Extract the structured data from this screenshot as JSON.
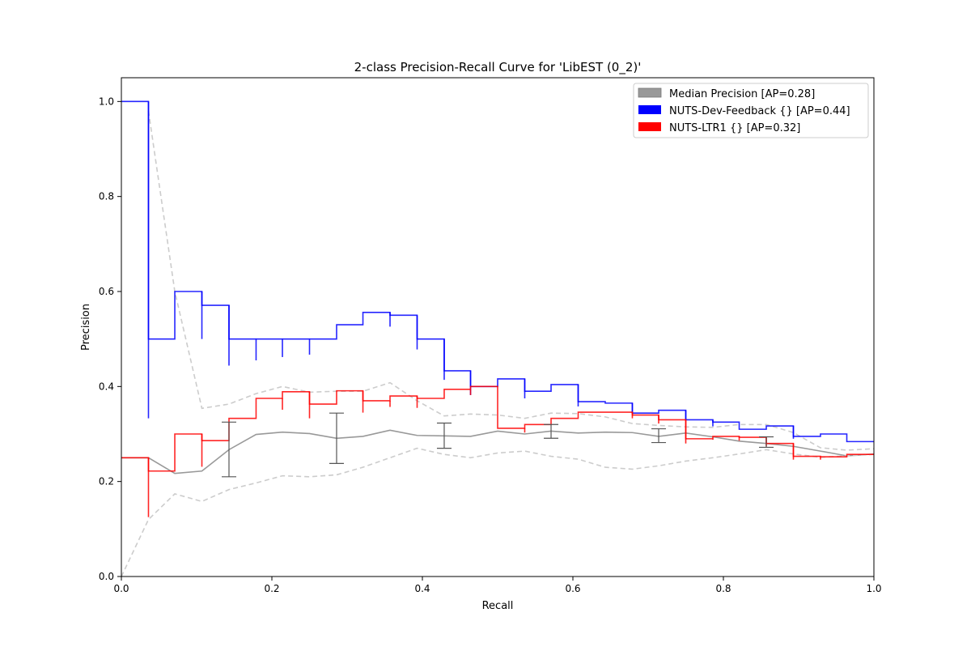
{
  "chart_data": {
    "type": "line",
    "title": "2-class Precision-Recall Curve for 'LibEST (0_2)'",
    "xlabel": "Recall",
    "ylabel": "Precision",
    "xlim": [
      0.0,
      1.0
    ],
    "ylim": [
      0.0,
      1.05
    ],
    "x_ticks": [
      "0.0",
      "0.2",
      "0.4",
      "0.6",
      "0.8",
      "1.0"
    ],
    "y_ticks": [
      "0.0",
      "0.2",
      "0.4",
      "0.6",
      "0.8",
      "1.0"
    ],
    "grid": false,
    "legend_position": "top-right",
    "legend": [
      {
        "label": "Median Precision [AP=0.28]",
        "color": "#999999"
      },
      {
        "label": "NUTS-Dev-Feedback {} [AP=0.44]",
        "color": "#0000ff"
      },
      {
        "label": "NUTS-LTR1 {} [AP=0.32]",
        "color": "#ff0000"
      }
    ],
    "series": [
      {
        "name": "Median Precision [AP=0.28]",
        "style": "solid",
        "color": "#999999",
        "x": [
          0.0,
          0.036,
          0.071,
          0.107,
          0.143,
          0.179,
          0.214,
          0.25,
          0.286,
          0.321,
          0.357,
          0.393,
          0.429,
          0.464,
          0.5,
          0.536,
          0.571,
          0.607,
          0.643,
          0.679,
          0.714,
          0.75,
          0.786,
          0.821,
          0.857,
          0.893,
          0.929,
          0.964,
          1.0
        ],
        "values": [
          0.25,
          0.25,
          0.217,
          0.222,
          0.267,
          0.299,
          0.304,
          0.301,
          0.291,
          0.295,
          0.308,
          0.297,
          0.296,
          0.295,
          0.306,
          0.3,
          0.306,
          0.302,
          0.304,
          0.303,
          0.295,
          0.302,
          0.294,
          0.285,
          0.28,
          0.274,
          0.264,
          0.254,
          0.258
        ]
      },
      {
        "name": "Upper band",
        "style": "dashed",
        "color": "#cccccc",
        "x": [
          0.036,
          0.071,
          0.107,
          0.143,
          0.179,
          0.214,
          0.25,
          0.286,
          0.321,
          0.357,
          0.393,
          0.429,
          0.464,
          0.5,
          0.536,
          0.571,
          0.607,
          0.643,
          0.679,
          0.714,
          0.75,
          0.786,
          0.821,
          0.857,
          0.893,
          0.929,
          0.964,
          1.0
        ],
        "values": [
          0.98,
          0.6,
          0.354,
          0.363,
          0.385,
          0.4,
          0.388,
          0.39,
          0.39,
          0.408,
          0.37,
          0.338,
          0.342,
          0.34,
          0.333,
          0.344,
          0.343,
          0.336,
          0.322,
          0.318,
          0.315,
          0.314,
          0.32,
          0.32,
          0.303,
          0.271,
          0.266,
          0.269
        ]
      },
      {
        "name": "Lower band",
        "style": "dashed",
        "color": "#cccccc",
        "x": [
          0.0,
          0.036,
          0.071,
          0.107,
          0.143,
          0.179,
          0.214,
          0.25,
          0.286,
          0.321,
          0.357,
          0.393,
          0.429,
          0.464,
          0.5,
          0.536,
          0.571,
          0.607,
          0.643,
          0.679,
          0.714,
          0.75,
          0.786,
          0.821,
          0.857,
          0.893,
          0.929,
          0.964,
          1.0
        ],
        "values": [
          0.0,
          0.12,
          0.174,
          0.158,
          0.183,
          0.197,
          0.212,
          0.21,
          0.214,
          0.23,
          0.25,
          0.27,
          0.257,
          0.25,
          0.26,
          0.264,
          0.253,
          0.247,
          0.23,
          0.226,
          0.233,
          0.243,
          0.25,
          0.258,
          0.267,
          0.258,
          0.251,
          0.254,
          0.257
        ]
      },
      {
        "name": "NUTS-Dev-Feedback {} [AP=0.44]",
        "style": "step",
        "color": "#0000ff",
        "x": [
          0.0,
          0.036,
          0.071,
          0.107,
          0.143,
          0.179,
          0.214,
          0.25,
          0.286,
          0.321,
          0.357,
          0.393,
          0.429,
          0.464,
          0.5,
          0.536,
          0.571,
          0.607,
          0.643,
          0.679,
          0.714,
          0.75,
          0.786,
          0.821,
          0.857,
          0.893,
          0.929,
          0.964,
          1.0
        ],
        "values": [
          1.0,
          0.5,
          0.6,
          0.571,
          0.5,
          0.5,
          0.5,
          0.5,
          0.53,
          0.556,
          0.55,
          0.5,
          0.433,
          0.4,
          0.416,
          0.39,
          0.404,
          0.368,
          0.365,
          0.344,
          0.35,
          0.33,
          0.325,
          0.31,
          0.317,
          0.295,
          0.3,
          0.284,
          0.284
        ],
        "dips": [
          0.333,
          null,
          0.5,
          0.444,
          0.455,
          0.462,
          0.467,
          null,
          null,
          0.526,
          0.478,
          0.414,
          0.382,
          null,
          0.375,
          null,
          0.358,
          null,
          0.343,
          null,
          0.33,
          0.316,
          null,
          null,
          0.29,
          null,
          null,
          null
        ]
      },
      {
        "name": "NUTS-LTR1 {} [AP=0.32]",
        "style": "step",
        "color": "#ff0000",
        "x": [
          0.0,
          0.036,
          0.071,
          0.107,
          0.143,
          0.179,
          0.214,
          0.25,
          0.286,
          0.321,
          0.357,
          0.393,
          0.429,
          0.464,
          0.5,
          0.536,
          0.571,
          0.607,
          0.643,
          0.679,
          0.714,
          0.75,
          0.786,
          0.821,
          0.857,
          0.893,
          0.929,
          0.964,
          1.0
        ],
        "values": [
          0.25,
          0.222,
          0.3,
          0.286,
          0.333,
          0.375,
          0.389,
          0.363,
          0.391,
          0.37,
          0.38,
          0.375,
          0.394,
          0.4,
          0.312,
          0.32,
          0.333,
          0.346,
          0.346,
          0.34,
          0.33,
          0.29,
          0.295,
          0.293,
          0.28,
          0.253,
          0.252,
          0.257,
          0.257
        ],
        "dips": [
          0.125,
          null,
          0.231,
          null,
          null,
          0.351,
          0.333,
          null,
          0.345,
          0.357,
          0.355,
          null,
          0.382,
          null,
          0.303,
          null,
          null,
          null,
          0.333,
          0.322,
          0.28,
          0.288,
          0.286,
          0.274,
          0.246,
          0.246,
          null,
          null
        ]
      }
    ],
    "error_bars": [
      {
        "x": 0.143,
        "low": 0.21,
        "high": 0.325
      },
      {
        "x": 0.286,
        "low": 0.238,
        "high": 0.344
      },
      {
        "x": 0.429,
        "low": 0.27,
        "high": 0.323
      },
      {
        "x": 0.571,
        "low": 0.291,
        "high": 0.32
      },
      {
        "x": 0.714,
        "low": 0.282,
        "high": 0.311
      },
      {
        "x": 0.857,
        "low": 0.272,
        "high": 0.294
      }
    ]
  }
}
